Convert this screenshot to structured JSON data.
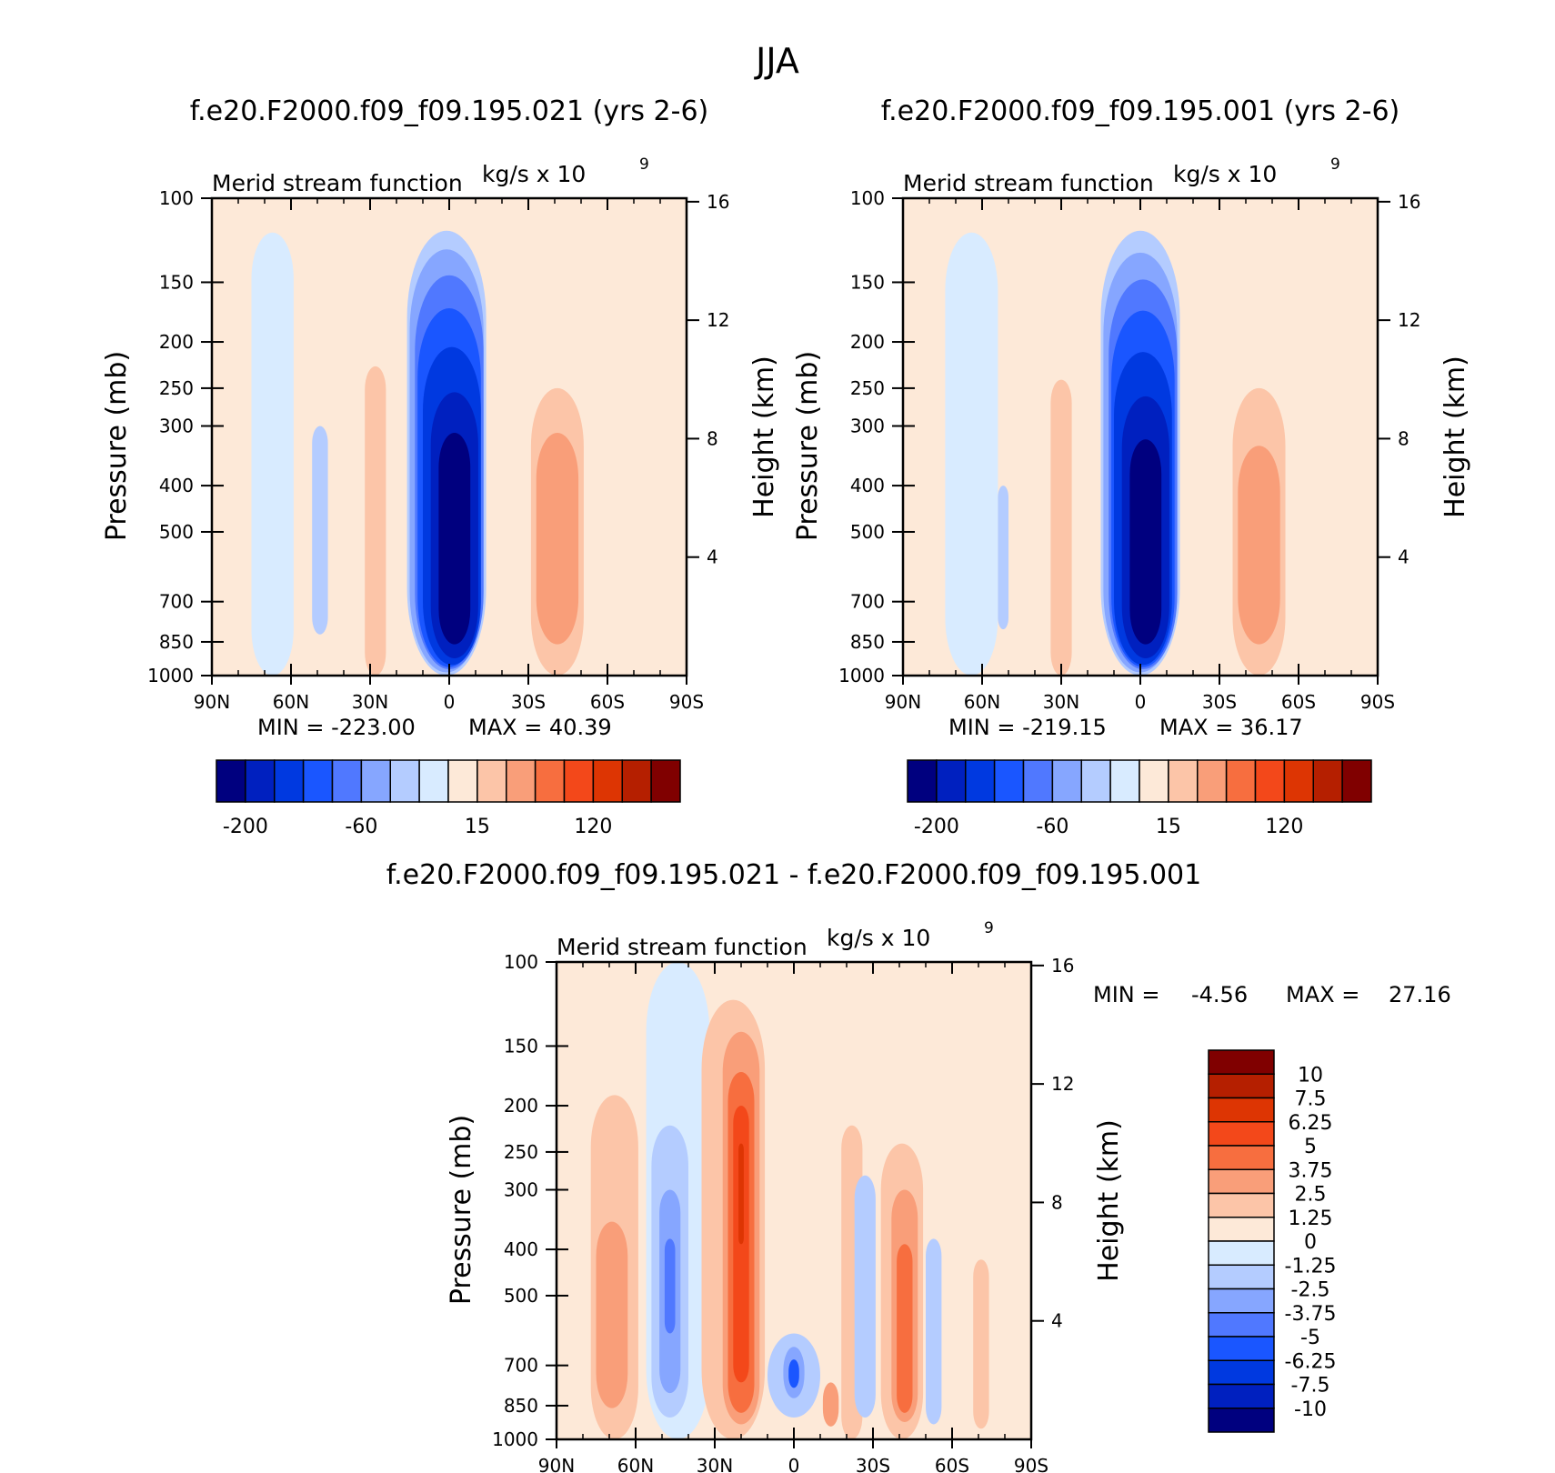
{
  "figure_title": "JJA",
  "chart_data": [
    {
      "type": "heatmap",
      "title": "f.e20.F2000.f09_f09.195.021 (yrs 2-6)",
      "subtitle_left": "Merid stream function",
      "subtitle_right": "kg/s x 10",
      "subtitle_exponent": "9",
      "ylabel": "Pressure (mb)",
      "y2label": "Height (km)",
      "xlabel": "",
      "x_ticks": [
        "90N",
        "60N",
        "30N",
        "0",
        "30S",
        "60S",
        "90S"
      ],
      "y_ticks": [
        100,
        150,
        200,
        250,
        300,
        400,
        500,
        700,
        850,
        1000
      ],
      "y_scale": "log",
      "y2_ticks": [
        16,
        12,
        8,
        4
      ],
      "min_label": "MIN = -223.00",
      "max_label": "MAX = 40.39",
      "min": -223.0,
      "max": 40.39,
      "colorbar": {
        "orientation": "horizontal",
        "labels": [
          "-200",
          "-60",
          "15",
          "120"
        ],
        "colors": [
          "#00007f",
          "#0020bf",
          "#0039e0",
          "#1a56ff",
          "#5078ff",
          "#86a6ff",
          "#b4ccff",
          "#d8ebff",
          "#fde9d8",
          "#fcc5a8",
          "#f99e79",
          "#f76e3f",
          "#f3481a",
          "#dd3503",
          "#b51f00",
          "#800000"
        ]
      },
      "cells": [
        {
          "lat": 67,
          "lat_half": 8,
          "p_top": 118,
          "p_bot": 1000,
          "level": 7
        },
        {
          "lat": 49,
          "lat_half": 3,
          "p_top": 300,
          "p_bot": 820,
          "level": 6
        },
        {
          "lat": 28,
          "lat_half": 4,
          "p_top": 225,
          "p_bot": 1000,
          "level": 9
        },
        {
          "lat": 1,
          "lat_half": 15,
          "p_top": 117,
          "p_bot": 1000,
          "level": 6
        },
        {
          "lat": 1,
          "lat_half": 14,
          "p_top": 128,
          "p_bot": 985,
          "level": 5
        },
        {
          "lat": 0,
          "lat_half": 13,
          "p_top": 145,
          "p_bot": 970,
          "level": 4
        },
        {
          "lat": 0,
          "lat_half": 12,
          "p_top": 170,
          "p_bot": 960,
          "level": 3
        },
        {
          "lat": -1,
          "lat_half": 11,
          "p_top": 205,
          "p_bot": 950,
          "level": 2
        },
        {
          "lat": -2,
          "lat_half": 9,
          "p_top": 255,
          "p_bot": 920,
          "level": 1
        },
        {
          "lat": -2,
          "lat_half": 6,
          "p_top": 310,
          "p_bot": 860,
          "level": 0
        },
        {
          "lat": -41,
          "lat_half": 10,
          "p_top": 250,
          "p_bot": 1000,
          "level": 9
        },
        {
          "lat": -41,
          "lat_half": 8,
          "p_top": 310,
          "p_bot": 860,
          "level": 10
        }
      ]
    },
    {
      "type": "heatmap",
      "title": "f.e20.F2000.f09_f09.195.001 (yrs 2-6)",
      "subtitle_left": "Merid stream function",
      "subtitle_right": "kg/s x 10",
      "subtitle_exponent": "9",
      "ylabel": "Pressure (mb)",
      "y2label": "Height (km)",
      "xlabel": "",
      "x_ticks": [
        "90N",
        "60N",
        "30N",
        "0",
        "30S",
        "60S",
        "90S"
      ],
      "y_ticks": [
        100,
        150,
        200,
        250,
        300,
        400,
        500,
        700,
        850,
        1000
      ],
      "y_scale": "log",
      "y2_ticks": [
        16,
        12,
        8,
        4
      ],
      "min_label": "MIN = -219.15",
      "max_label": "MAX = 36.17",
      "min": -219.15,
      "max": 36.17,
      "colorbar": {
        "orientation": "horizontal",
        "labels": [
          "-200",
          "-60",
          "15",
          "120"
        ],
        "colors": [
          "#00007f",
          "#0020bf",
          "#0039e0",
          "#1a56ff",
          "#5078ff",
          "#86a6ff",
          "#b4ccff",
          "#d8ebff",
          "#fde9d8",
          "#fcc5a8",
          "#f99e79",
          "#f76e3f",
          "#f3481a",
          "#dd3503",
          "#b51f00",
          "#800000"
        ]
      },
      "cells": [
        {
          "lat": 64,
          "lat_half": 10,
          "p_top": 118,
          "p_bot": 1000,
          "level": 7
        },
        {
          "lat": 52,
          "lat_half": 2,
          "p_top": 400,
          "p_bot": 800,
          "level": 6
        },
        {
          "lat": 30,
          "lat_half": 4,
          "p_top": 240,
          "p_bot": 1000,
          "level": 9
        },
        {
          "lat": 0,
          "lat_half": 15,
          "p_top": 117,
          "p_bot": 1000,
          "level": 6
        },
        {
          "lat": 0,
          "lat_half": 14,
          "p_top": 130,
          "p_bot": 985,
          "level": 5
        },
        {
          "lat": -1,
          "lat_half": 13,
          "p_top": 148,
          "p_bot": 970,
          "level": 4
        },
        {
          "lat": -1,
          "lat_half": 12,
          "p_top": 172,
          "p_bot": 960,
          "level": 3
        },
        {
          "lat": -1,
          "lat_half": 11,
          "p_top": 210,
          "p_bot": 950,
          "level": 2
        },
        {
          "lat": -2,
          "lat_half": 9,
          "p_top": 260,
          "p_bot": 920,
          "level": 1
        },
        {
          "lat": -2,
          "lat_half": 6,
          "p_top": 320,
          "p_bot": 860,
          "level": 0
        },
        {
          "lat": -45,
          "lat_half": 10,
          "p_top": 250,
          "p_bot": 1000,
          "level": 9
        },
        {
          "lat": -45,
          "lat_half": 8,
          "p_top": 330,
          "p_bot": 860,
          "level": 10
        }
      ]
    },
    {
      "type": "heatmap",
      "title": "f.e20.F2000.f09_f09.195.021 - f.e20.F2000.f09_f09.195.001",
      "subtitle_left": "Merid stream function",
      "subtitle_right": "kg/s x 10",
      "subtitle_exponent": "9",
      "ylabel": "Pressure (mb)",
      "y2label": "Height (km)",
      "xlabel": "",
      "x_ticks": [
        "90N",
        "60N",
        "30N",
        "0",
        "30S",
        "60S",
        "90S"
      ],
      "y_ticks": [
        100,
        150,
        200,
        250,
        300,
        400,
        500,
        700,
        850,
        1000
      ],
      "y_scale": "log",
      "y2_ticks": [
        16,
        12,
        8,
        4
      ],
      "min_label": "MIN =",
      "min_value": "-4.56",
      "max_label": "MAX =",
      "max_value": "27.16",
      "min": -4.56,
      "max": 27.16,
      "colorbar": {
        "orientation": "vertical",
        "labels": [
          "10",
          "7.5",
          "6.25",
          "5",
          "3.75",
          "2.5",
          "1.25",
          "0",
          "-1.25",
          "-2.5",
          "-3.75",
          "-5",
          "-6.25",
          "-7.5",
          "-10"
        ],
        "colors": [
          "#800000",
          "#b51f00",
          "#dd3503",
          "#f3481a",
          "#f76e3f",
          "#f99e79",
          "#fcc5a8",
          "#fde9d8",
          "#d8ebff",
          "#b4ccff",
          "#86a6ff",
          "#5078ff",
          "#1a56ff",
          "#0039e0",
          "#0020bf",
          "#00007f"
        ]
      },
      "cells": [
        {
          "lat": 68,
          "lat_half": 9,
          "p_top": 190,
          "p_bot": 1000,
          "level": 9
        },
        {
          "lat": 69,
          "lat_half": 6,
          "p_top": 350,
          "p_bot": 860,
          "level": 10
        },
        {
          "lat": 44,
          "lat_half": 12,
          "p_top": 100,
          "p_bot": 1000,
          "level": 7
        },
        {
          "lat": 47,
          "lat_half": 7,
          "p_top": 220,
          "p_bot": 900,
          "level": 6
        },
        {
          "lat": 47,
          "lat_half": 4,
          "p_top": 300,
          "p_bot": 800,
          "level": 5
        },
        {
          "lat": 47,
          "lat_half": 2,
          "p_top": 380,
          "p_bot": 600,
          "level": 4
        },
        {
          "lat": 23,
          "lat_half": 12,
          "p_top": 120,
          "p_bot": 1000,
          "level": 9
        },
        {
          "lat": 20,
          "lat_half": 7,
          "p_top": 140,
          "p_bot": 930,
          "level": 10
        },
        {
          "lat": 20,
          "lat_half": 5,
          "p_top": 170,
          "p_bot": 880,
          "level": 11
        },
        {
          "lat": 20,
          "lat_half": 3,
          "p_top": 200,
          "p_bot": 760,
          "level": 12
        },
        {
          "lat": 20,
          "lat_half": 1,
          "p_top": 240,
          "p_bot": 390,
          "level": 13
        },
        {
          "lat": 0,
          "lat_half": 10,
          "p_top": 600,
          "p_bot": 900,
          "level": 6
        },
        {
          "lat": 0,
          "lat_half": 4,
          "p_top": 640,
          "p_bot": 820,
          "level": 5
        },
        {
          "lat": 0,
          "lat_half": 2,
          "p_top": 680,
          "p_bot": 780,
          "level": 3
        },
        {
          "lat": -14,
          "lat_half": 3,
          "p_top": 760,
          "p_bot": 940,
          "level": 10
        },
        {
          "lat": -22,
          "lat_half": 4,
          "p_top": 220,
          "p_bot": 1000,
          "level": 9
        },
        {
          "lat": -27,
          "lat_half": 4,
          "p_top": 280,
          "p_bot": 900,
          "level": 6
        },
        {
          "lat": -41,
          "lat_half": 8,
          "p_top": 240,
          "p_bot": 1000,
          "level": 9
        },
        {
          "lat": -42,
          "lat_half": 5,
          "p_top": 300,
          "p_bot": 920,
          "level": 10
        },
        {
          "lat": -42,
          "lat_half": 3,
          "p_top": 390,
          "p_bot": 880,
          "level": 11
        },
        {
          "lat": -53,
          "lat_half": 3,
          "p_top": 380,
          "p_bot": 930,
          "level": 6
        },
        {
          "lat": -71,
          "lat_half": 3,
          "p_top": 420,
          "p_bot": 950,
          "level": 9
        }
      ]
    }
  ]
}
